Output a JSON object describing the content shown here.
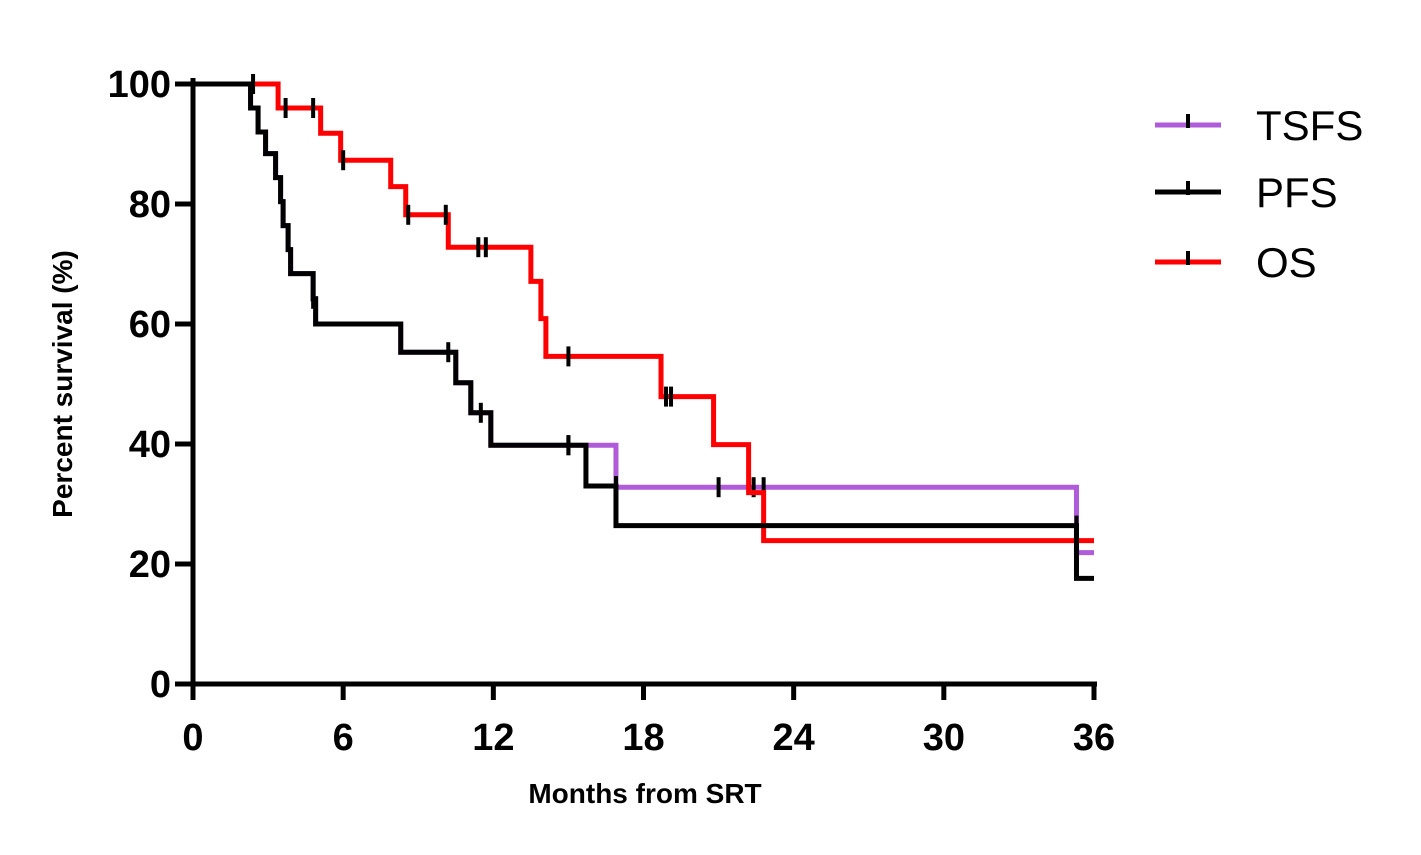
{
  "chart_data": {
    "type": "line",
    "subtype": "kaplan-meier step curves with censor ticks",
    "xlabel": "Months from SRT",
    "ylabel": "Percent survival (%)",
    "xlim": [
      0,
      36
    ],
    "ylim": [
      0,
      100
    ],
    "xticks": [
      0,
      6,
      12,
      18,
      24,
      30,
      36
    ],
    "yticks": [
      0,
      20,
      40,
      60,
      80,
      100
    ],
    "grid": false,
    "legend_position": "top-right",
    "series": [
      {
        "name": "TSFS",
        "color": "#b05bd9",
        "steps": [
          [
            0,
            100
          ],
          [
            2.3,
            96
          ],
          [
            2.6,
            92
          ],
          [
            2.9,
            88.4
          ],
          [
            3.3,
            84.4
          ],
          [
            3.5,
            80.4
          ],
          [
            3.6,
            76.4
          ],
          [
            3.8,
            72.4
          ],
          [
            3.9,
            68.4
          ],
          [
            4.8,
            64.2
          ],
          [
            4.9,
            60
          ],
          [
            8.3,
            55.3
          ],
          [
            10.5,
            50.2
          ],
          [
            11.1,
            45.2
          ],
          [
            11.9,
            39.8
          ],
          [
            16.9,
            32.8
          ],
          [
            35.3,
            21.9
          ]
        ],
        "end_x": 36,
        "censors": [
          [
            15,
            39.8
          ],
          [
            21,
            32.8
          ],
          [
            22.8,
            32.8
          ],
          [
            22.4,
            32.8
          ]
        ]
      },
      {
        "name": "PFS",
        "color": "#000000",
        "steps": [
          [
            0,
            100
          ],
          [
            2.3,
            96
          ],
          [
            2.6,
            92
          ],
          [
            2.9,
            88.4
          ],
          [
            3.3,
            84.4
          ],
          [
            3.5,
            80.4
          ],
          [
            3.6,
            76.4
          ],
          [
            3.8,
            72.4
          ],
          [
            3.9,
            68.4
          ],
          [
            4.8,
            64.2
          ],
          [
            4.9,
            60
          ],
          [
            8.3,
            55.3
          ],
          [
            10.5,
            50.2
          ],
          [
            11.1,
            45.2
          ],
          [
            11.9,
            39.8
          ],
          [
            15.7,
            33
          ],
          [
            16.9,
            26.4
          ],
          [
            35.3,
            17.6
          ]
        ],
        "end_x": 36,
        "censors": [
          [
            2.4,
            100
          ],
          [
            10.2,
            55.3
          ],
          [
            11.5,
            45.2
          ],
          [
            15,
            39.8
          ],
          [
            16.9,
            33
          ],
          [
            4.8,
            64.2
          ],
          [
            35.3,
            26.4
          ]
        ]
      },
      {
        "name": "OS",
        "color": "#ff0000",
        "steps": [
          [
            0,
            100
          ],
          [
            3.4,
            96
          ],
          [
            5.1,
            91.8
          ],
          [
            5.9,
            87.3
          ],
          [
            7.9,
            82.9
          ],
          [
            8.5,
            78.2
          ],
          [
            10.2,
            72.8
          ],
          [
            13.5,
            67.1
          ],
          [
            13.9,
            60.9
          ],
          [
            14.1,
            54.6
          ],
          [
            18.7,
            47.9
          ],
          [
            20.8,
            39.9
          ],
          [
            22.2,
            31.9
          ],
          [
            22.8,
            23.9
          ]
        ],
        "end_x": 36,
        "censors": [
          [
            3.7,
            96
          ],
          [
            4.8,
            96
          ],
          [
            6.0,
            87.3
          ],
          [
            8.6,
            78.2
          ],
          [
            10.1,
            78.2
          ],
          [
            11.4,
            72.8
          ],
          [
            11.7,
            72.8
          ],
          [
            15,
            54.6
          ],
          [
            18.9,
            47.9
          ],
          [
            19.1,
            47.9
          ]
        ]
      }
    ]
  }
}
